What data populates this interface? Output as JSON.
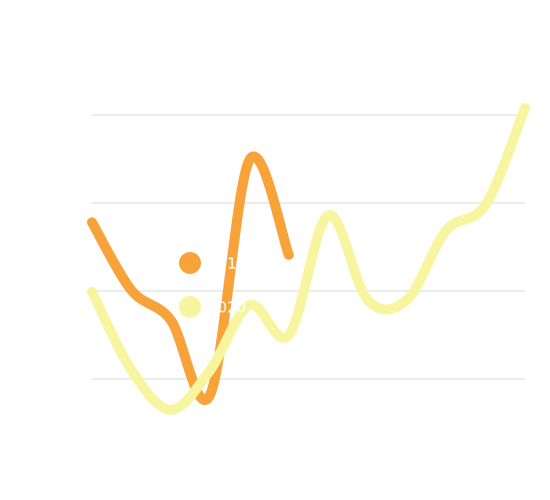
{
  "chart_data": {
    "type": "line",
    "categories": [
      null,
      null,
      null,
      null,
      null,
      null,
      null,
      null,
      null,
      null,
      null,
      null
    ],
    "series": [
      {
        "name": "2019",
        "color": "#f8a33a",
        "values": [
          1.78,
          1.01,
          0.67,
          -0.18,
          2.49,
          1.41,
          null,
          null,
          null,
          null,
          null,
          null
        ]
      },
      {
        "name": "2020",
        "color": "#f7f5a0",
        "values": [
          0.99,
          0.1,
          -0.35,
          0.1,
          0.84,
          0.5,
          1.86,
          0.9,
          0.9,
          1.69,
          1.98,
          3.08
        ]
      }
    ],
    "ylim": [
      -1,
      4
    ],
    "yticks": [
      0,
      1,
      2,
      3
    ],
    "grid": true
  }
}
